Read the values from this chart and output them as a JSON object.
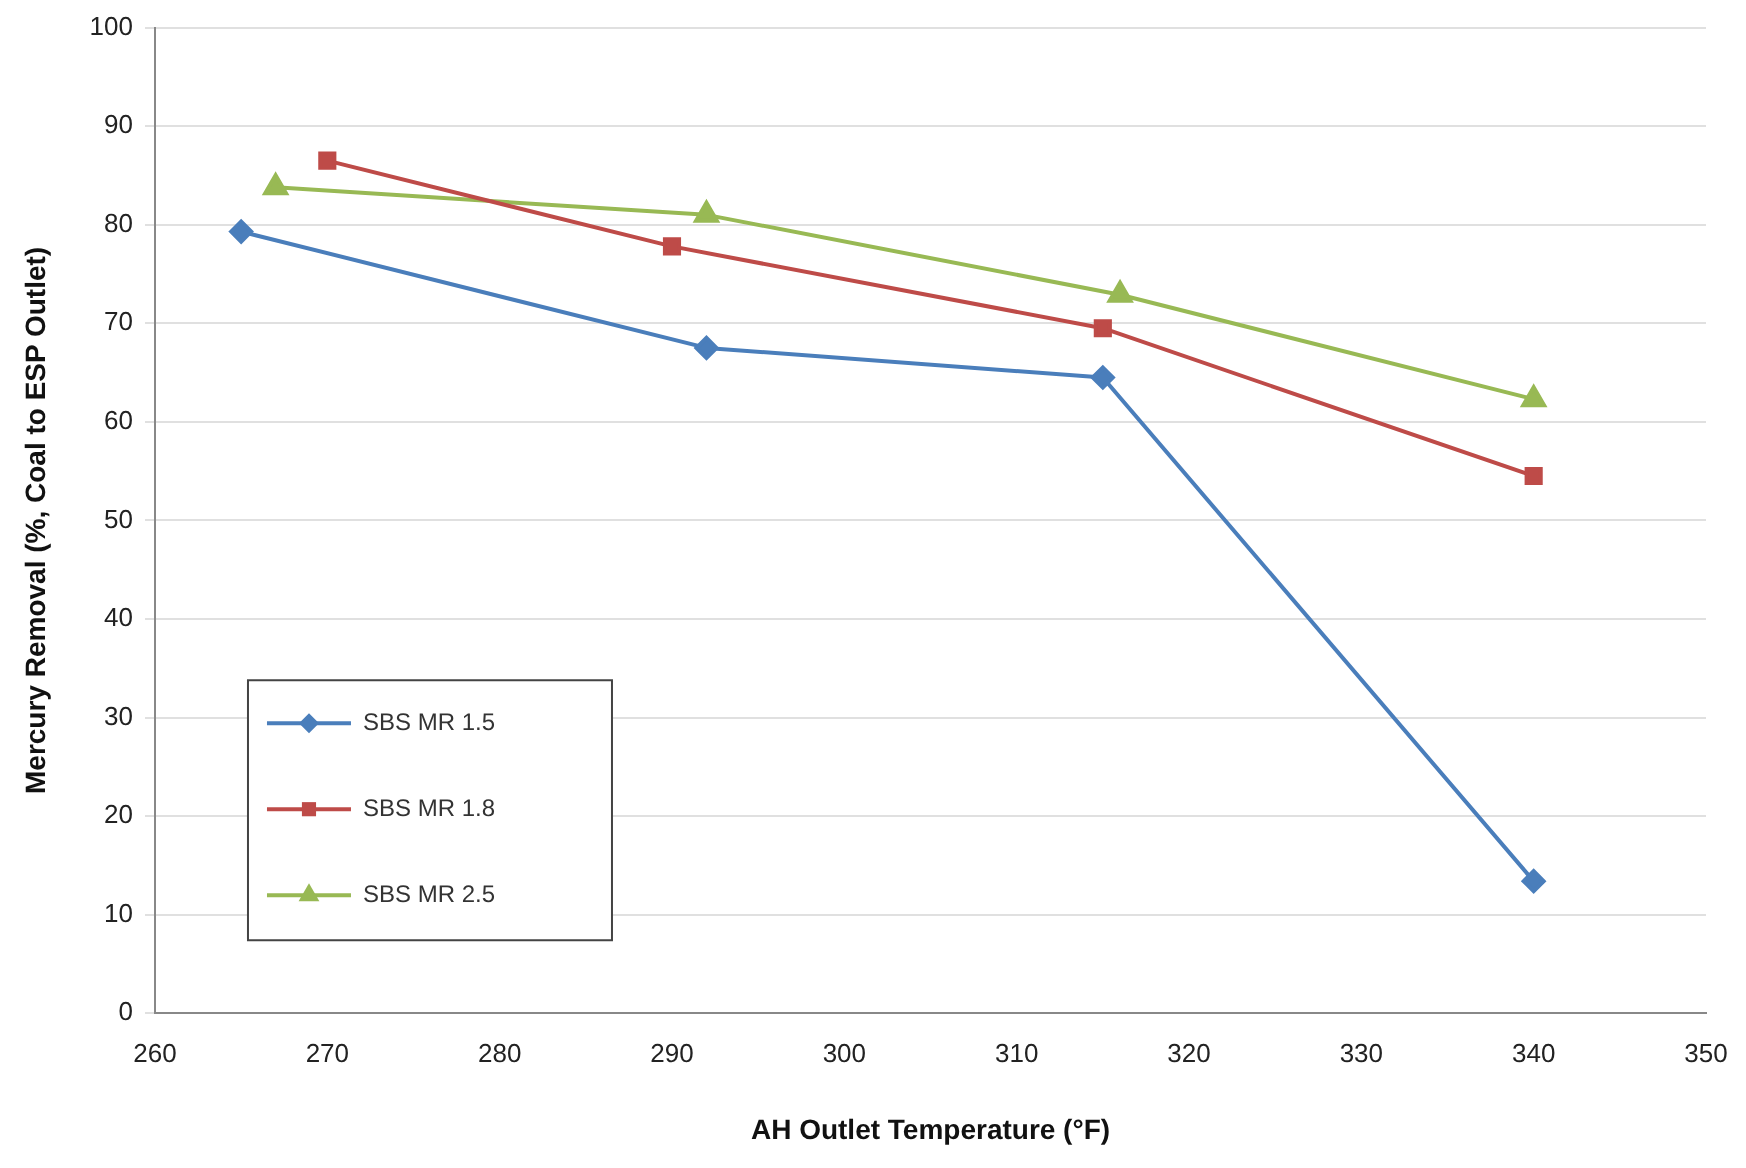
{
  "chart_data": {
    "type": "line",
    "xlabel": "AH Outlet Temperature (°F)",
    "ylabel": "Mercury Removal (%, Coal to ESP Outlet)",
    "xlim": [
      260,
      350
    ],
    "xticks": [
      260,
      270,
      280,
      290,
      300,
      310,
      320,
      330,
      340,
      350
    ],
    "ylim": [
      0,
      100
    ],
    "yticks": [
      0,
      10,
      20,
      30,
      40,
      50,
      60,
      70,
      80,
      90,
      100
    ],
    "grid": "y",
    "legend": "bottom left",
    "series": [
      {
        "name": "SBS MR 1.5",
        "color": "#4a7ebb",
        "marker": "diamond",
        "x": [
          265,
          292,
          315,
          340
        ],
        "values": [
          79.3,
          67.5,
          64.5,
          13.4
        ]
      },
      {
        "name": "SBS MR 1.8",
        "color": "#be4b48",
        "marker": "square",
        "x": [
          270,
          290,
          315,
          340
        ],
        "values": [
          86.5,
          77.8,
          69.5,
          54.5
        ]
      },
      {
        "name": "SBS MR 2.5",
        "color": "#98b954",
        "marker": "triangle",
        "x": [
          267,
          292,
          316,
          340
        ],
        "values": [
          83.8,
          81,
          72.9,
          62.3
        ]
      }
    ]
  }
}
